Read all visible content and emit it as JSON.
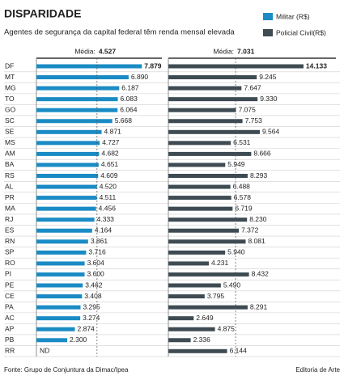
{
  "chart_data": {
    "type": "bar",
    "orientation": "horizontal",
    "title": "DISPARIDADE",
    "subtitle": "Agentes de segurança da capital federal têm renda mensal elevada",
    "categories": [
      "DF",
      "MT",
      "MG",
      "TO",
      "GO",
      "SC",
      "SE",
      "MS",
      "AM",
      "BA",
      "RS",
      "AL",
      "PR",
      "MA",
      "RJ",
      "ES",
      "RN",
      "SP",
      "RO",
      "PI",
      "PE",
      "CE",
      "PA",
      "AC",
      "AP",
      "PB",
      "RR"
    ],
    "mean_text": "Média:",
    "series": [
      {
        "name": "Militar (R$)",
        "color": "#1a8bc4",
        "values": [
          7879,
          6890,
          6187,
          6083,
          6064,
          5668,
          4871,
          4727,
          4682,
          4651,
          4609,
          4520,
          4511,
          4456,
          4333,
          4164,
          3861,
          3716,
          3604,
          3600,
          3462,
          3408,
          3295,
          3274,
          2874,
          2300,
          null
        ],
        "value_labels": [
          "7.879",
          "6.890",
          "6.187",
          "6.083",
          "6.064",
          "5.668",
          "4.871",
          "4.727",
          "4.682",
          "4.651",
          "4.609",
          "4.520",
          "4.511",
          "4.456",
          "4.333",
          "4.164",
          "3.861",
          "3.716",
          "3.604",
          "3.600",
          "3.462",
          "3.408",
          "3.295",
          "3.274",
          "2.874",
          "2.300",
          "ND"
        ],
        "mean": 4527,
        "mean_label": "4.527"
      },
      {
        "name": "Policial Civil(R$)",
        "color": "#3e4b53",
        "values": [
          14133,
          9245,
          7647,
          9330,
          7075,
          7753,
          9564,
          6531,
          8666,
          5949,
          8293,
          6488,
          6578,
          6719,
          8230,
          7372,
          8081,
          5940,
          4231,
          8432,
          5490,
          3795,
          8291,
          2649,
          4875,
          2336,
          6144
        ],
        "value_labels": [
          "14.133",
          "9.245",
          "7.647",
          "9.330",
          "7.075",
          "7.753",
          "9.564",
          "6.531",
          "8.666",
          "5.949",
          "8.293",
          "6.488",
          "6.578",
          "6.719",
          "8.230",
          "7.372",
          "8.081",
          "5.940",
          "4.231",
          "8.432",
          "5.490",
          "3.795",
          "8.291",
          "2.649",
          "4.875",
          "2.336",
          "6.144"
        ],
        "mean": 7031,
        "mean_label": "7.031"
      }
    ],
    "source": "Fonte: Grupo de Conjuntura da Dimac/Ipea",
    "credit": "Editoria de Arte"
  }
}
